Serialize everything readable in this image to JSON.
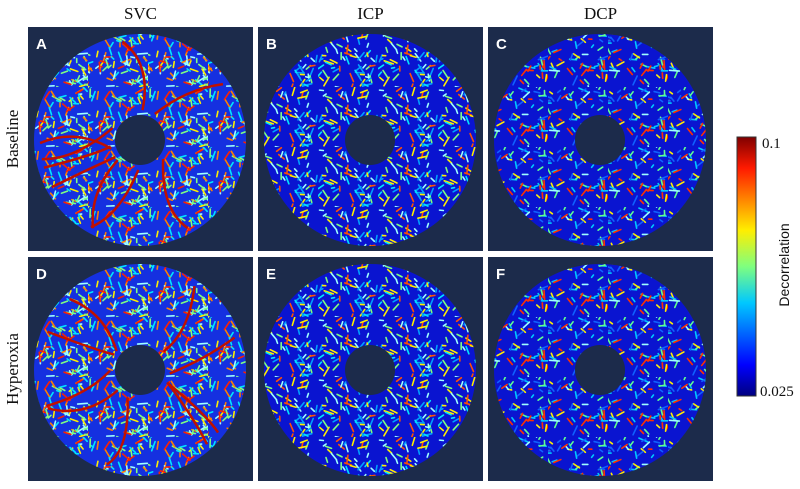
{
  "columns": [
    "SVC",
    "ICP",
    "DCP"
  ],
  "rows": [
    "Baseline",
    "Hyperoxia"
  ],
  "panels": [
    "A",
    "B",
    "C",
    "D",
    "E",
    "F"
  ],
  "colorbar": {
    "label": "Decorrelation",
    "max": 0.1,
    "min": 0.025
  }
}
